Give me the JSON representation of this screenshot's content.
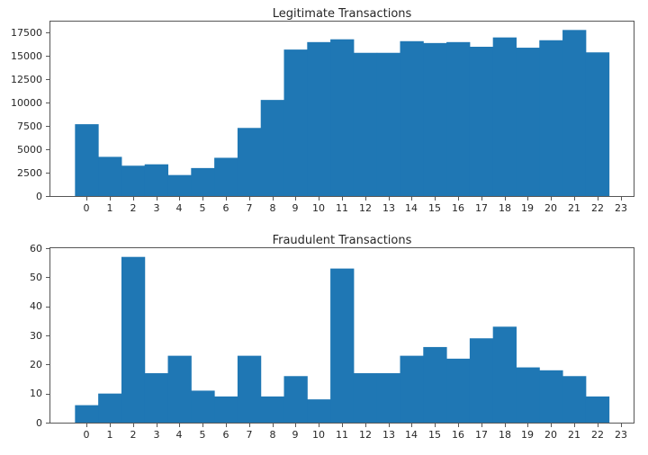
{
  "figure": {
    "background": "#ffffff",
    "text_color": "#262626",
    "spine_color": "#565656"
  },
  "chart_data": [
    {
      "type": "bar",
      "title": "Legitimate Transactions",
      "xlabel": "",
      "ylabel": "",
      "categories": [
        0,
        1,
        2,
        3,
        4,
        5,
        6,
        7,
        8,
        9,
        10,
        11,
        12,
        13,
        14,
        15,
        16,
        17,
        18,
        19,
        20,
        21,
        22,
        23
      ],
      "values": [
        7700,
        4200,
        3250,
        3400,
        2250,
        3000,
        4100,
        7300,
        10300,
        15700,
        16500,
        16800,
        15350,
        15350,
        16600,
        16400,
        16500,
        16000,
        17000,
        15900,
        16700,
        17800,
        15400,
        0
      ],
      "x_tick_labels": [
        "0",
        "1",
        "2",
        "3",
        "4",
        "5",
        "6",
        "7",
        "8",
        "9",
        "10",
        "11",
        "12",
        "13",
        "14",
        "15",
        "16",
        "17",
        "18",
        "19",
        "20",
        "21",
        "22",
        "23"
      ],
      "y_tick_labels": [
        "0",
        "2500",
        "5000",
        "7500",
        "10000",
        "12500",
        "15000",
        "17500"
      ],
      "y_tick_values": [
        0,
        2500,
        5000,
        7500,
        10000,
        12500,
        15000,
        17500
      ],
      "xlim": [
        -1.56,
        23.56
      ],
      "ylim": [
        0,
        18700
      ],
      "bin_start": -0.5,
      "bin_width": 1,
      "bar_color": "#1f77b4",
      "grid": false,
      "legend": null
    },
    {
      "type": "bar",
      "title": "Fraudulent Transactions",
      "xlabel": "",
      "ylabel": "",
      "categories": [
        0,
        1,
        2,
        3,
        4,
        5,
        6,
        7,
        8,
        9,
        10,
        11,
        12,
        13,
        14,
        15,
        16,
        17,
        18,
        19,
        20,
        21,
        22,
        23
      ],
      "values": [
        6,
        10,
        57,
        17,
        23,
        11,
        9,
        23,
        9,
        16,
        8,
        53,
        17,
        17,
        23,
        26,
        22,
        29,
        33,
        19,
        18,
        16,
        9,
        0
      ],
      "x_tick_labels": [
        "0",
        "1",
        "2",
        "3",
        "4",
        "5",
        "6",
        "7",
        "8",
        "9",
        "10",
        "11",
        "12",
        "13",
        "14",
        "15",
        "16",
        "17",
        "18",
        "19",
        "20",
        "21",
        "22",
        "23"
      ],
      "y_tick_labels": [
        "0",
        "10",
        "20",
        "30",
        "40",
        "50",
        "60"
      ],
      "y_tick_values": [
        0,
        10,
        20,
        30,
        40,
        50,
        60
      ],
      "xlim": [
        -1.56,
        23.56
      ],
      "ylim": [
        0,
        60
      ],
      "bin_start": -0.5,
      "bin_width": 1,
      "bar_color": "#1f77b4",
      "grid": false,
      "legend": null
    }
  ]
}
